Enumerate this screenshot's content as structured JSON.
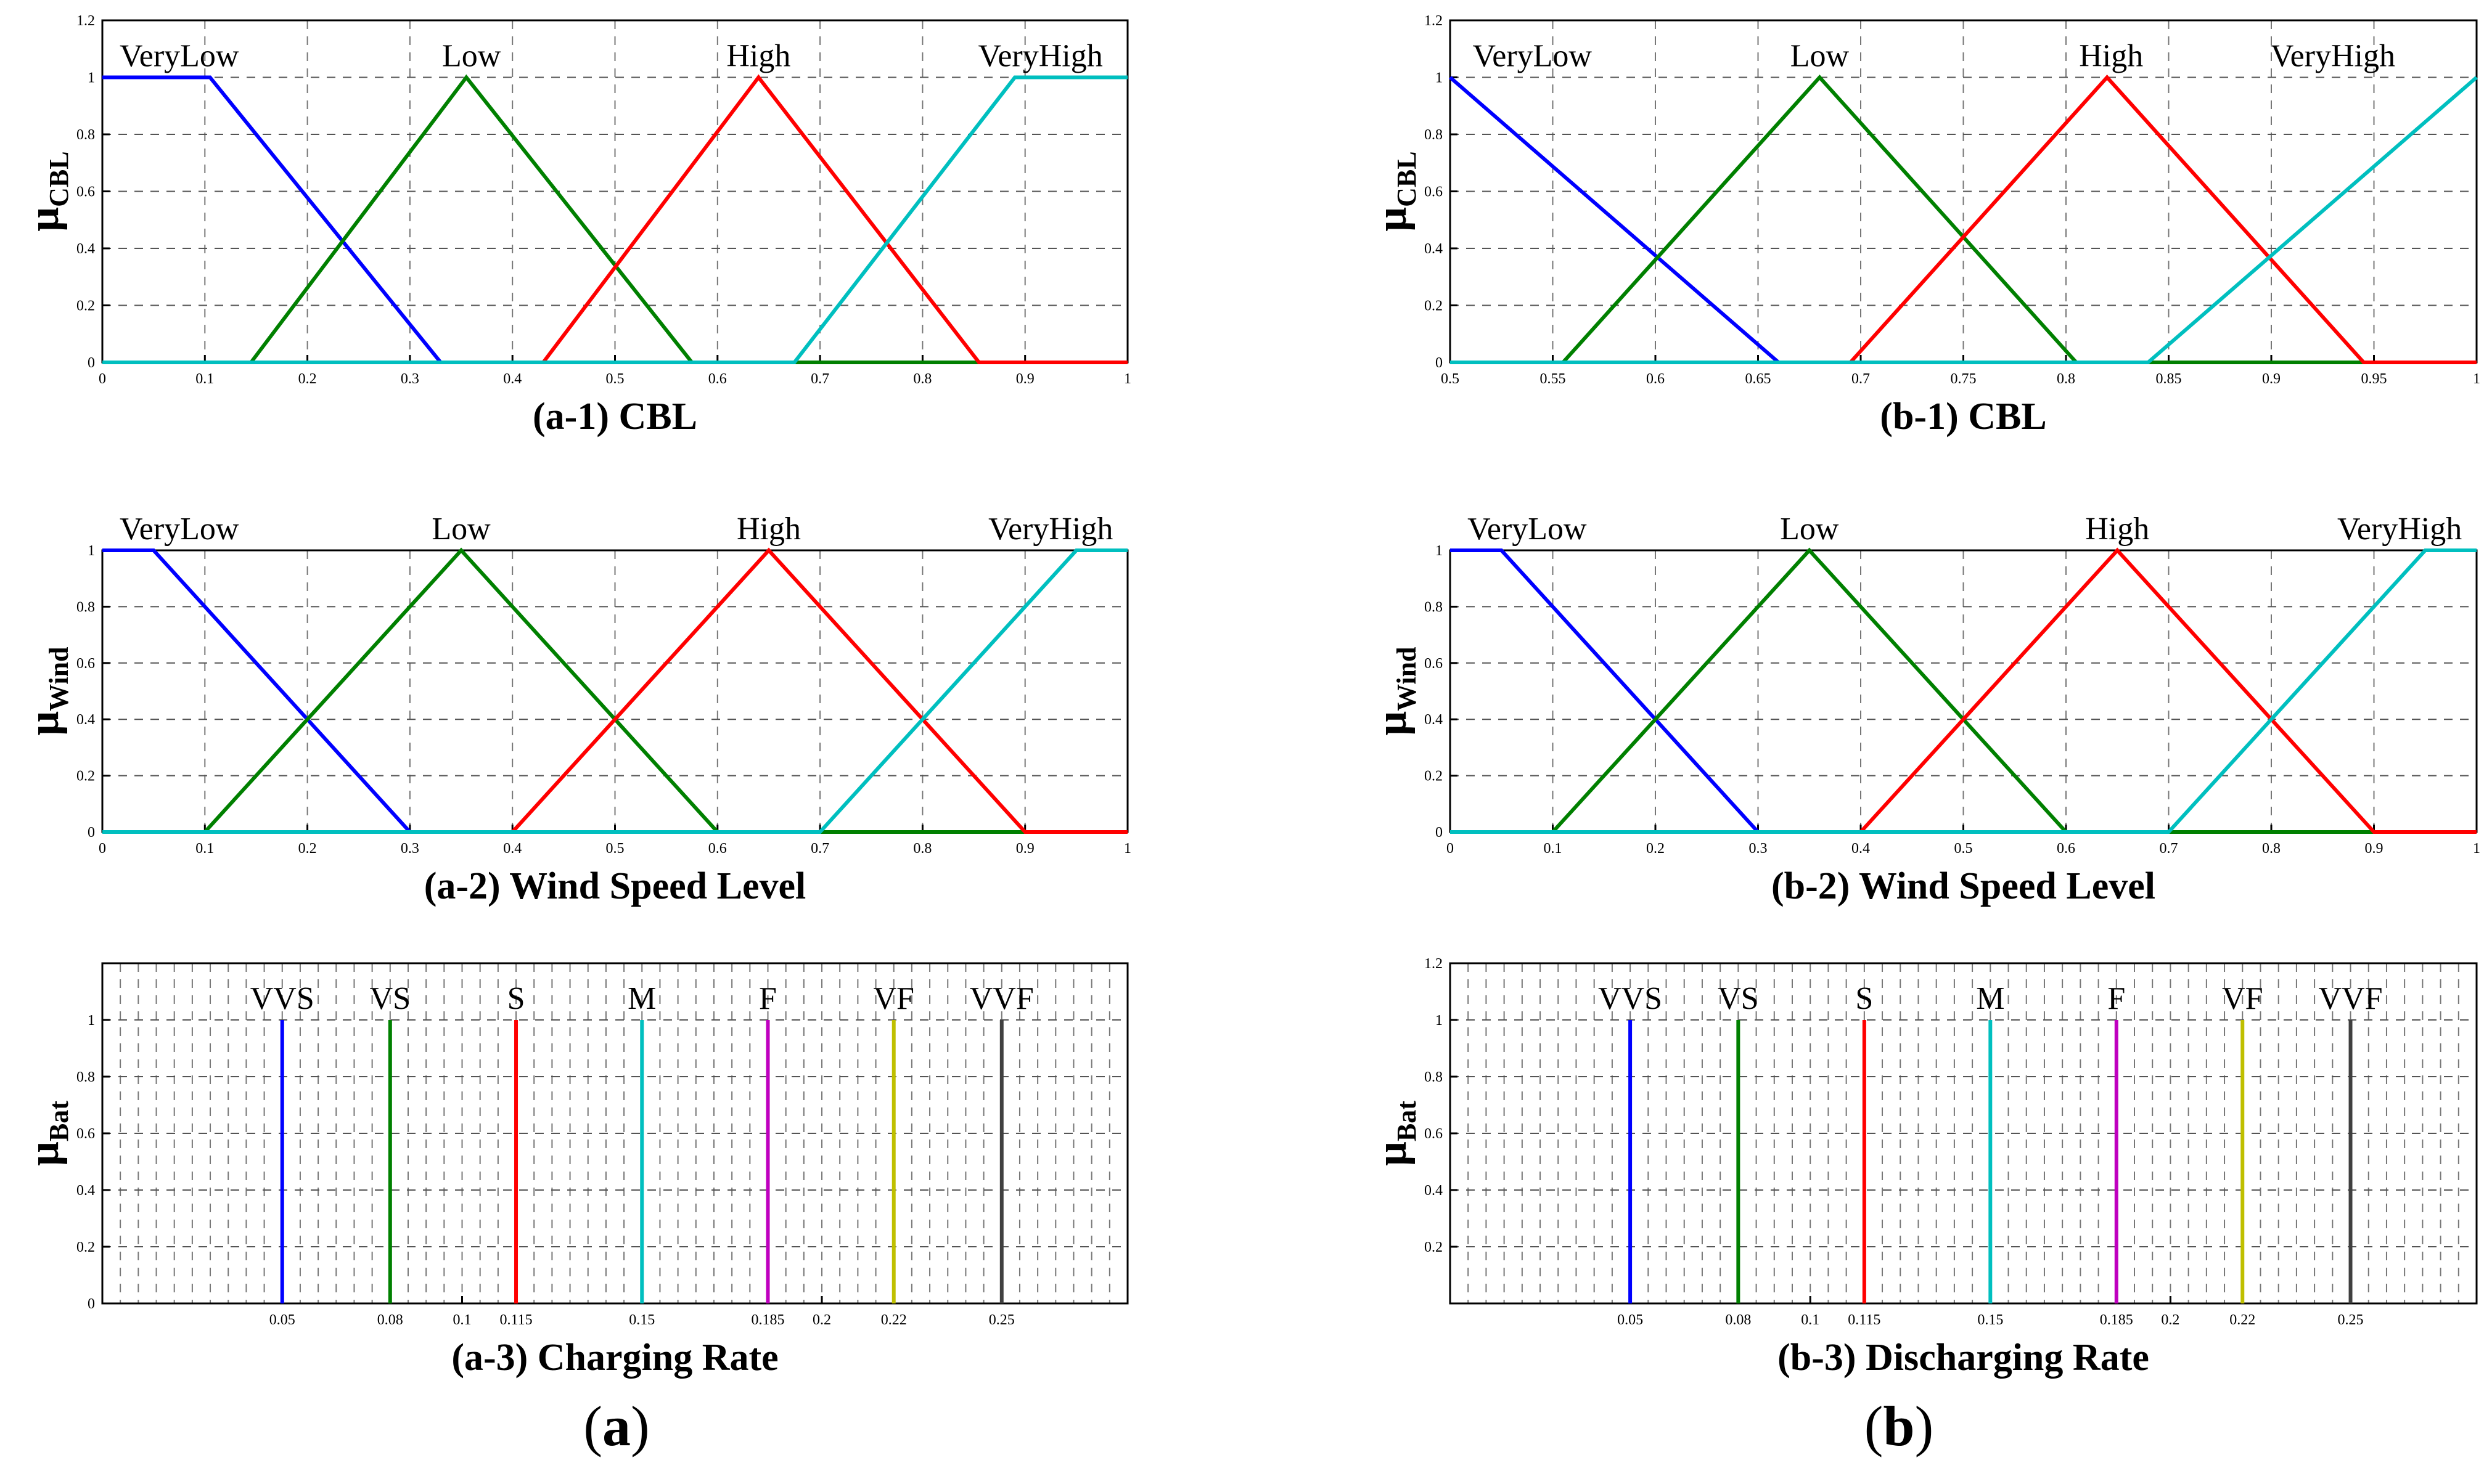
{
  "figure_labels": {
    "left": [
      "(",
      "a",
      ")"
    ],
    "right": [
      "(",
      "b",
      ")"
    ]
  },
  "chart_data": [
    {
      "id": "a1",
      "type": "line",
      "title": "(a-1) CBL",
      "ylabel": "μ",
      "ylabel_sub": "CBL",
      "xlim": [
        0,
        1
      ],
      "ylim": [
        0,
        1.2
      ],
      "xticks": [
        0,
        0.1,
        0.2,
        0.3,
        0.4,
        0.5,
        0.6,
        0.7,
        0.8,
        0.9,
        1
      ],
      "xticklabels": [
        "0",
        "0.1",
        "0.2",
        "0.3",
        "0.4",
        "0.5",
        "0.6",
        "0.7",
        "0.8",
        "0.9",
        "1"
      ],
      "yticks": [
        0,
        0.2,
        0.4,
        0.6,
        0.8,
        1,
        1.2
      ],
      "yticklabels": [
        "0",
        "0.2",
        "0.4",
        "0.6",
        "0.8",
        "1",
        "1.2"
      ],
      "series": [
        {
          "name": "VeryLow",
          "color": "#0000ff",
          "label_x": 0.075,
          "points": [
            [
              0,
              1
            ],
            [
              0.105,
              1
            ],
            [
              0.33,
              0
            ],
            [
              1,
              0
            ]
          ]
        },
        {
          "name": "Low",
          "color": "#008000",
          "label_x": 0.36,
          "points": [
            [
              0,
              0
            ],
            [
              0.145,
              0
            ],
            [
              0.355,
              1
            ],
            [
              0.575,
              0
            ],
            [
              1,
              0
            ]
          ]
        },
        {
          "name": "High",
          "color": "#ff0000",
          "label_x": 0.64,
          "points": [
            [
              0,
              0
            ],
            [
              0.43,
              0
            ],
            [
              0.64,
              1
            ],
            [
              0.855,
              0
            ],
            [
              1,
              0
            ]
          ]
        },
        {
          "name": "VeryHigh",
          "color": "#00bfbf",
          "label_x": 0.915,
          "points": [
            [
              0,
              0
            ],
            [
              0.675,
              0
            ],
            [
              0.89,
              1
            ],
            [
              1,
              1
            ]
          ]
        }
      ]
    },
    {
      "id": "a2",
      "type": "line",
      "title": "(a-2) Wind Speed Level",
      "ylabel": "μ",
      "ylabel_sub": "Wind",
      "xlim": [
        0,
        1
      ],
      "ylim": [
        0,
        1
      ],
      "xticks": [
        0,
        0.1,
        0.2,
        0.3,
        0.4,
        0.5,
        0.6,
        0.7,
        0.8,
        0.9,
        1
      ],
      "xticklabels": [
        "0",
        "0.1",
        "0.2",
        "0.3",
        "0.4",
        "0.5",
        "0.6",
        "0.7",
        "0.8",
        "0.9",
        "1"
      ],
      "yticks": [
        0,
        0.2,
        0.4,
        0.6,
        0.8,
        1
      ],
      "yticklabels": [
        "0",
        "0.2",
        "0.4",
        "0.6",
        "0.8",
        "1"
      ],
      "series": [
        {
          "name": "VeryLow",
          "color": "#0000ff",
          "label_x": 0.075,
          "points": [
            [
              0,
              1
            ],
            [
              0.05,
              1
            ],
            [
              0.3,
              0
            ],
            [
              1,
              0
            ]
          ]
        },
        {
          "name": "Low",
          "color": "#008000",
          "label_x": 0.35,
          "points": [
            [
              0,
              0
            ],
            [
              0.1,
              0
            ],
            [
              0.35,
              1
            ],
            [
              0.6,
              0
            ],
            [
              1,
              0
            ]
          ]
        },
        {
          "name": "High",
          "color": "#ff0000",
          "label_x": 0.65,
          "points": [
            [
              0,
              0
            ],
            [
              0.4,
              0
            ],
            [
              0.65,
              1
            ],
            [
              0.9,
              0
            ],
            [
              1,
              0
            ]
          ]
        },
        {
          "name": "VeryHigh",
          "color": "#00bfbf",
          "label_x": 0.925,
          "points": [
            [
              0,
              0
            ],
            [
              0.7,
              0
            ],
            [
              0.95,
              1
            ],
            [
              1,
              1
            ]
          ]
        }
      ]
    },
    {
      "id": "a3",
      "type": "line",
      "title": "(a-3) Charging Rate",
      "ylabel": "μ",
      "ylabel_sub": "Bat",
      "xlim": [
        0,
        0.285
      ],
      "ylim": [
        0,
        1.2
      ],
      "xticks": [
        0.05,
        0.08,
        0.1,
        0.115,
        0.15,
        0.185,
        0.2,
        0.22,
        0.25
      ],
      "xticklabels": [
        "0.05",
        "0.08",
        "0.1",
        "0.115",
        "0.15",
        "0.185",
        "0.2",
        "0.22",
        "0.25"
      ],
      "yticks": [
        0,
        0.2,
        0.4,
        0.6,
        0.8,
        1
      ],
      "yticklabels": [
        "0",
        "0.2",
        "0.4",
        "0.6",
        "0.8",
        "1"
      ],
      "series": [
        {
          "name": "VVS",
          "color": "#0000ff",
          "label_x": 0.05,
          "points": [
            [
              0.05,
              0
            ],
            [
              0.05,
              1
            ]
          ]
        },
        {
          "name": "VS",
          "color": "#008000",
          "label_x": 0.08,
          "points": [
            [
              0.08,
              0
            ],
            [
              0.08,
              1
            ]
          ]
        },
        {
          "name": "S",
          "color": "#ff0000",
          "label_x": 0.115,
          "points": [
            [
              0.115,
              0
            ],
            [
              0.115,
              1
            ]
          ]
        },
        {
          "name": "M",
          "color": "#00bfbf",
          "label_x": 0.15,
          "points": [
            [
              0.15,
              0
            ],
            [
              0.15,
              1
            ]
          ]
        },
        {
          "name": "F",
          "color": "#bf00bf",
          "label_x": 0.185,
          "points": [
            [
              0.185,
              0
            ],
            [
              0.185,
              1
            ]
          ]
        },
        {
          "name": "VF",
          "color": "#bfbf00",
          "label_x": 0.22,
          "points": [
            [
              0.22,
              0
            ],
            [
              0.22,
              1
            ]
          ]
        },
        {
          "name": "VVF",
          "color": "#404040",
          "label_x": 0.25,
          "points": [
            [
              0.25,
              0
            ],
            [
              0.25,
              1
            ]
          ]
        }
      ]
    },
    {
      "id": "b1",
      "type": "line",
      "title": "(b-1) CBL",
      "ylabel": "μ",
      "ylabel_sub": "CBL",
      "xlim": [
        0.5,
        1
      ],
      "ylim": [
        0,
        1.2
      ],
      "xticks": [
        0.5,
        0.55,
        0.6,
        0.65,
        0.7,
        0.75,
        0.8,
        0.85,
        0.9,
        0.95,
        1
      ],
      "xticklabels": [
        "0.5",
        "0.55",
        "0.6",
        "0.65",
        "0.7",
        "0.75",
        "0.8",
        "0.85",
        "0.9",
        "0.95",
        "1"
      ],
      "yticks": [
        0,
        0.2,
        0.4,
        0.6,
        0.8,
        1,
        1.2
      ],
      "yticklabels": [
        "0",
        "0.2",
        "0.4",
        "0.6",
        "0.8",
        "1",
        "1.2"
      ],
      "series": [
        {
          "name": "VeryLow",
          "color": "#0000ff",
          "label_x": 0.54,
          "points": [
            [
              0.5,
              1
            ],
            [
              0.66,
              0
            ],
            [
              1,
              0
            ]
          ]
        },
        {
          "name": "Low",
          "color": "#008000",
          "label_x": 0.68,
          "points": [
            [
              0.5,
              0
            ],
            [
              0.555,
              0
            ],
            [
              0.68,
              1
            ],
            [
              0.805,
              0
            ],
            [
              1,
              0
            ]
          ]
        },
        {
          "name": "High",
          "color": "#ff0000",
          "label_x": 0.822,
          "points": [
            [
              0.5,
              0
            ],
            [
              0.695,
              0
            ],
            [
              0.82,
              1
            ],
            [
              0.945,
              0
            ],
            [
              1,
              0
            ]
          ]
        },
        {
          "name": "VeryHigh",
          "color": "#00bfbf",
          "label_x": 0.93,
          "points": [
            [
              0.5,
              0
            ],
            [
              0.84,
              0
            ],
            [
              1,
              1
            ]
          ]
        }
      ]
    },
    {
      "id": "b2",
      "type": "line",
      "title": "(b-2) Wind Speed Level",
      "ylabel": "μ",
      "ylabel_sub": "Wind",
      "xlim": [
        0,
        1
      ],
      "ylim": [
        0,
        1
      ],
      "xticks": [
        0,
        0.1,
        0.2,
        0.3,
        0.4,
        0.5,
        0.6,
        0.7,
        0.8,
        0.9,
        1
      ],
      "xticklabels": [
        "0",
        "0.1",
        "0.2",
        "0.3",
        "0.4",
        "0.5",
        "0.6",
        "0.7",
        "0.8",
        "0.9",
        "1"
      ],
      "yticks": [
        0,
        0.2,
        0.4,
        0.6,
        0.8,
        1
      ],
      "yticklabels": [
        "0",
        "0.2",
        "0.4",
        "0.6",
        "0.8",
        "1"
      ],
      "series": [
        {
          "name": "VeryLow",
          "color": "#0000ff",
          "label_x": 0.075,
          "points": [
            [
              0,
              1
            ],
            [
              0.05,
              1
            ],
            [
              0.3,
              0
            ],
            [
              1,
              0
            ]
          ]
        },
        {
          "name": "Low",
          "color": "#008000",
          "label_x": 0.35,
          "points": [
            [
              0,
              0
            ],
            [
              0.1,
              0
            ],
            [
              0.35,
              1
            ],
            [
              0.6,
              0
            ],
            [
              1,
              0
            ]
          ]
        },
        {
          "name": "High",
          "color": "#ff0000",
          "label_x": 0.65,
          "points": [
            [
              0,
              0
            ],
            [
              0.4,
              0
            ],
            [
              0.65,
              1
            ],
            [
              0.9,
              0
            ],
            [
              1,
              0
            ]
          ]
        },
        {
          "name": "VeryHigh",
          "color": "#00bfbf",
          "label_x": 0.925,
          "points": [
            [
              0,
              0
            ],
            [
              0.7,
              0
            ],
            [
              0.95,
              1
            ],
            [
              1,
              1
            ]
          ]
        }
      ]
    },
    {
      "id": "b3",
      "type": "line",
      "title": "(b-3) Discharging Rate",
      "ylabel": "μ",
      "ylabel_sub": "Bat",
      "xlim": [
        0,
        0.285
      ],
      "ylim": [
        0,
        1.2
      ],
      "xticks": [
        0.05,
        0.08,
        0.1,
        0.115,
        0.15,
        0.185,
        0.2,
        0.22,
        0.25
      ],
      "xticklabels": [
        "0.05",
        "0.08",
        "0.1",
        "0.115",
        "0.15",
        "0.185",
        "0.2",
        "0.22",
        "0.25"
      ],
      "yticks": [
        0.2,
        0.4,
        0.6,
        0.8,
        1,
        1.2
      ],
      "yticklabels": [
        "0.2",
        "0.4",
        "0.6",
        "0.8",
        "1",
        "1.2"
      ],
      "series": [
        {
          "name": "VVS",
          "color": "#0000ff",
          "label_x": 0.05,
          "points": [
            [
              0.05,
              0
            ],
            [
              0.05,
              1
            ]
          ]
        },
        {
          "name": "VS",
          "color": "#008000",
          "label_x": 0.08,
          "points": [
            [
              0.08,
              0
            ],
            [
              0.08,
              1
            ]
          ]
        },
        {
          "name": "S",
          "color": "#ff0000",
          "label_x": 0.115,
          "points": [
            [
              0.115,
              0
            ],
            [
              0.115,
              1
            ]
          ]
        },
        {
          "name": "M",
          "color": "#00bfbf",
          "label_x": 0.15,
          "points": [
            [
              0.15,
              0
            ],
            [
              0.15,
              1
            ]
          ]
        },
        {
          "name": "F",
          "color": "#bf00bf",
          "label_x": 0.185,
          "points": [
            [
              0.185,
              0
            ],
            [
              0.185,
              1
            ]
          ]
        },
        {
          "name": "VF",
          "color": "#bfbf00",
          "label_x": 0.22,
          "points": [
            [
              0.22,
              0
            ],
            [
              0.22,
              1
            ]
          ]
        },
        {
          "name": "VVF",
          "color": "#404040",
          "label_x": 0.25,
          "points": [
            [
              0.25,
              0
            ],
            [
              0.25,
              1
            ]
          ]
        }
      ]
    }
  ]
}
